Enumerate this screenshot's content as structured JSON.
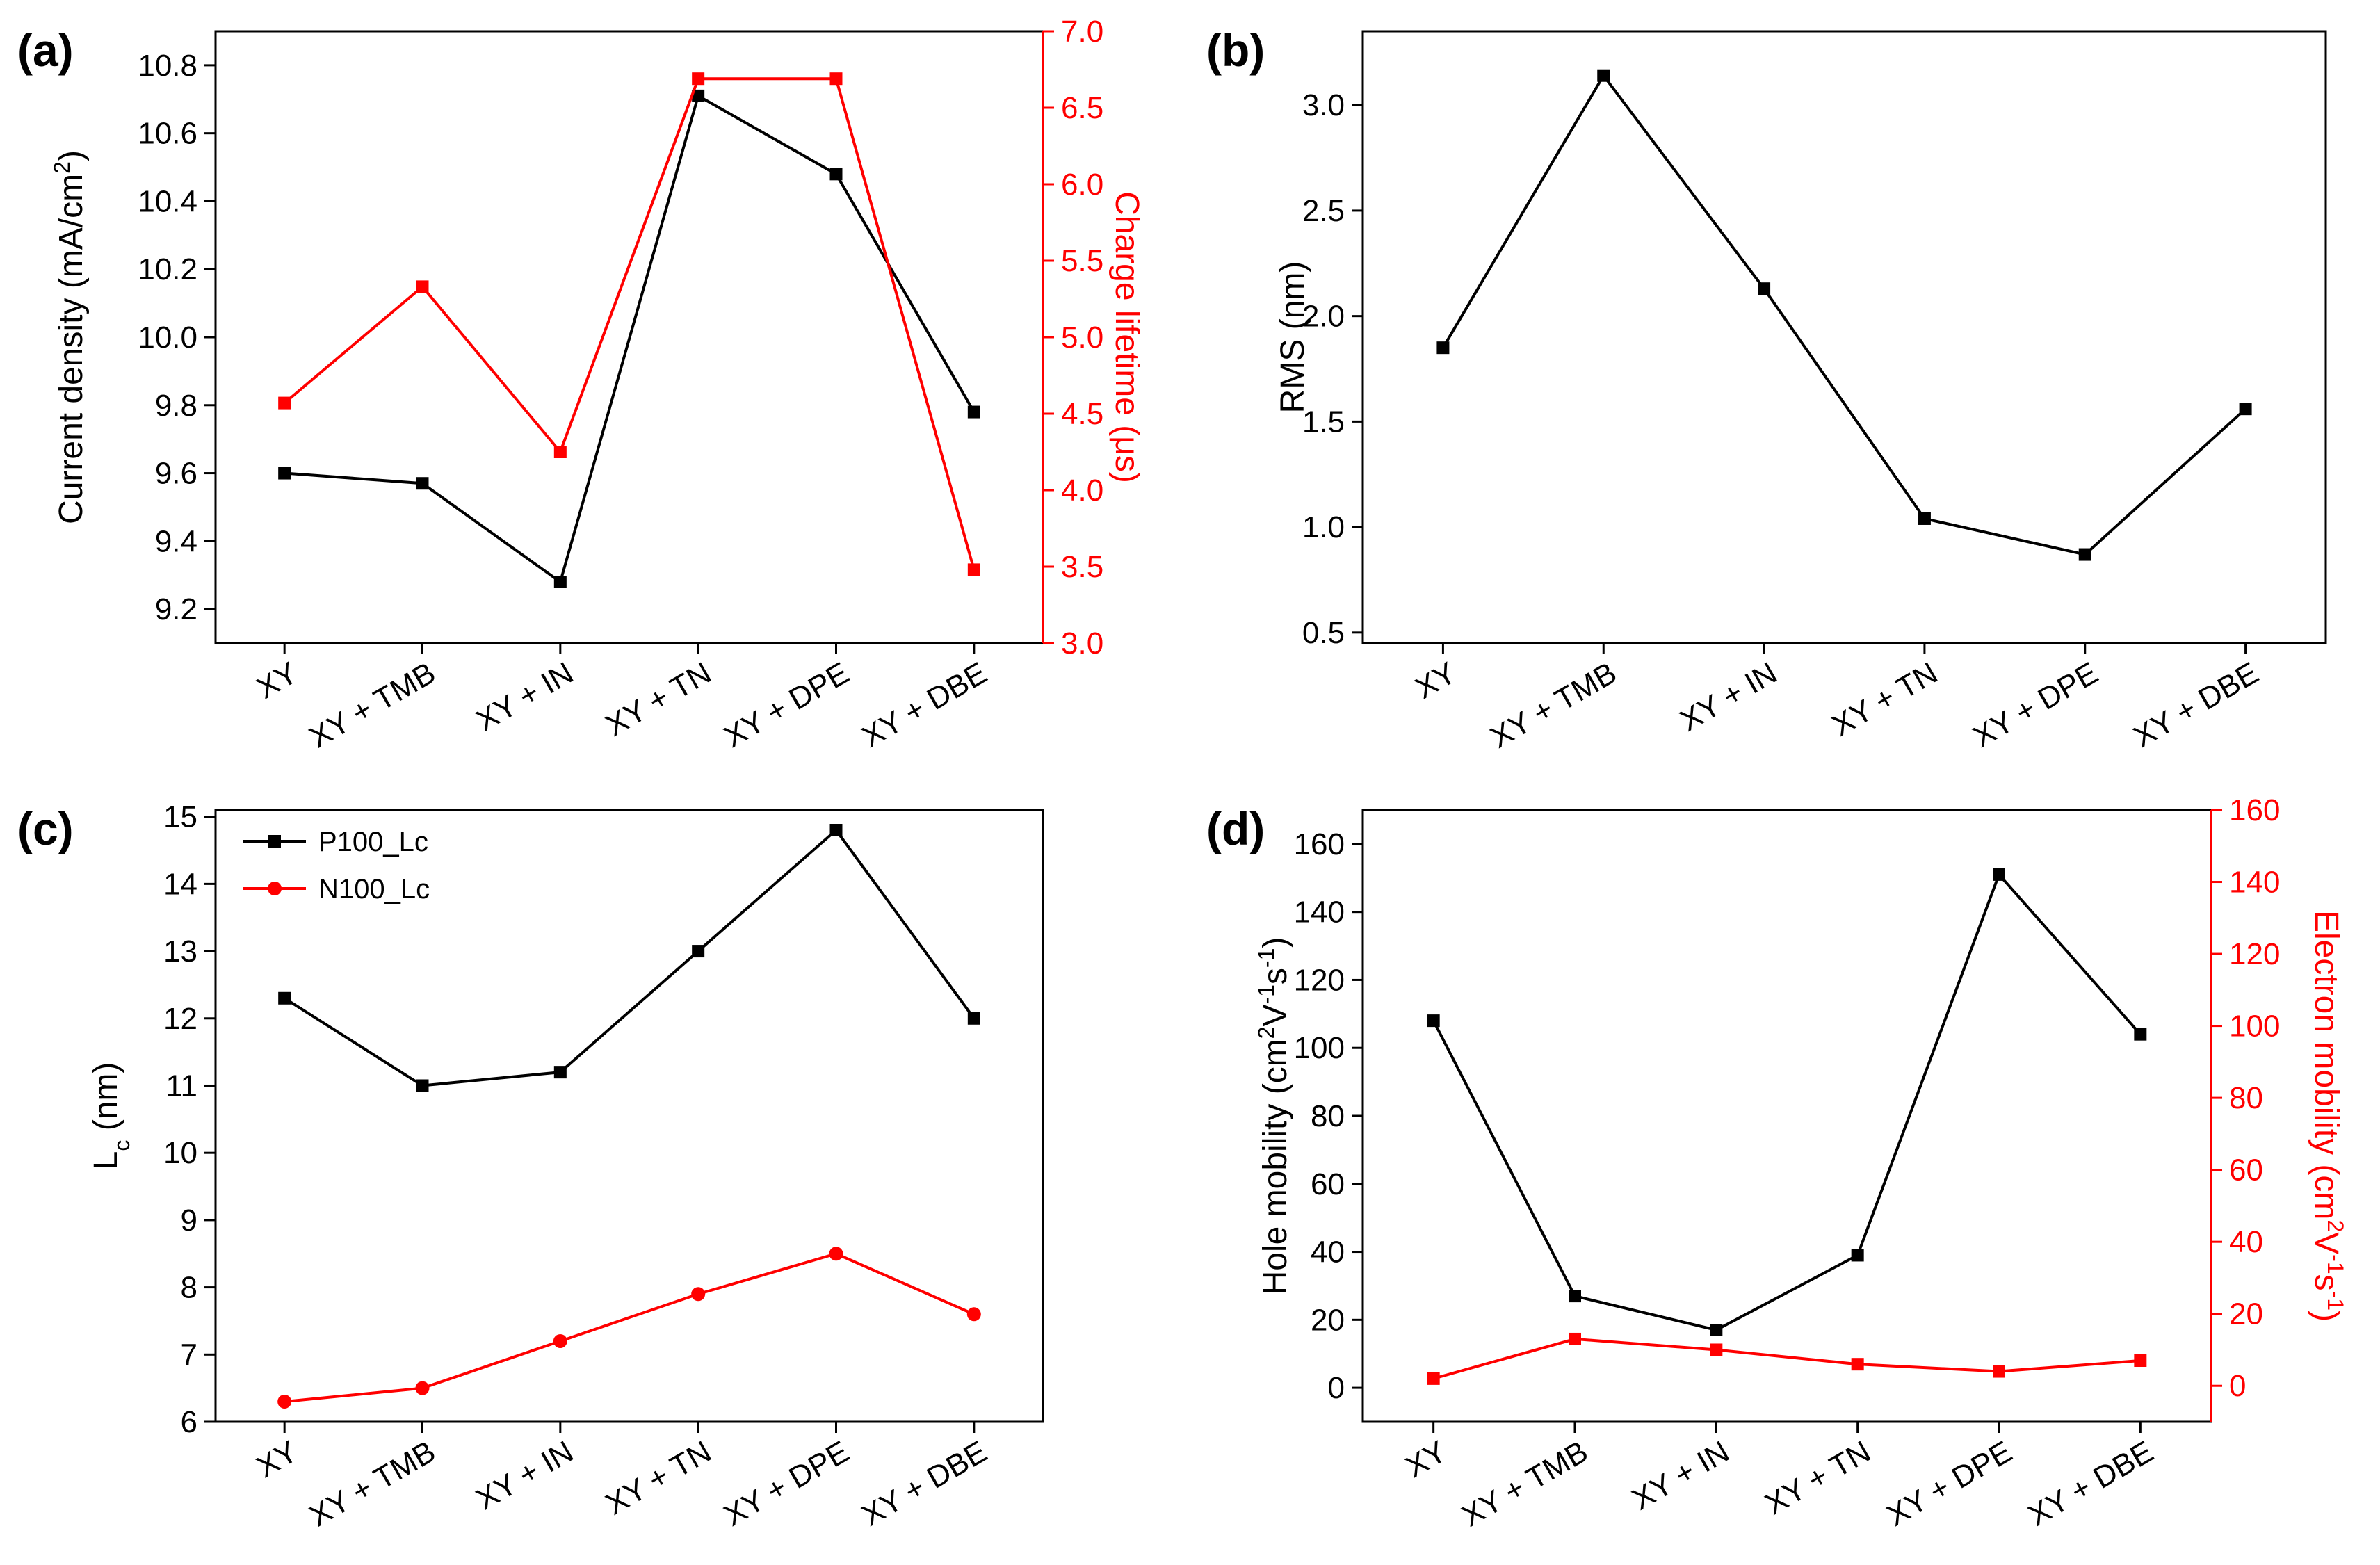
{
  "categories": [
    "XY",
    "XY + TMB",
    "XY + IN",
    "XY + TN",
    "XY + DPE",
    "XY + DBE"
  ],
  "colors": {
    "black": "#000000",
    "red": "#ff0000"
  },
  "chart_data": [
    {
      "panel": "(a)",
      "type": "line",
      "categories": [
        "XY",
        "XY + TMB",
        "XY + IN",
        "XY + TN",
        "XY + DPE",
        "XY + DBE"
      ],
      "left_axis": {
        "label_pre": "Current density (mA/cm",
        "label_sup": "2",
        "label_post": ")",
        "ylim": [
          9.1,
          10.9
        ],
        "ticks": [
          9.2,
          9.4,
          9.6,
          9.8,
          10.0,
          10.2,
          10.4,
          10.6,
          10.8
        ],
        "tick_labels": [
          "9.2",
          "9.4",
          "9.6",
          "9.8",
          "10.0",
          "10.2",
          "10.4",
          "10.6",
          "10.8"
        ]
      },
      "right_axis": {
        "label": "Charge lifetime (μs)",
        "ylim": [
          3.0,
          7.0
        ],
        "ticks": [
          3.0,
          3.5,
          4.0,
          4.5,
          5.0,
          5.5,
          6.0,
          6.5,
          7.0
        ],
        "tick_labels": [
          "3.0",
          "3.5",
          "4.0",
          "4.5",
          "5.0",
          "5.5",
          "6.0",
          "6.5",
          "7.0"
        ]
      },
      "series": [
        {
          "name": "Current density",
          "axis": "left",
          "color": "#000000",
          "marker": "square",
          "values": [
            9.6,
            9.57,
            9.28,
            10.71,
            10.48,
            9.78
          ]
        },
        {
          "name": "Charge lifetime",
          "axis": "right",
          "color": "#ff0000",
          "marker": "square",
          "values": [
            4.57,
            5.33,
            4.25,
            6.69,
            6.69,
            3.48
          ]
        }
      ]
    },
    {
      "panel": "(b)",
      "type": "line",
      "categories": [
        "XY",
        "XY + TMB",
        "XY + IN",
        "XY + TN",
        "XY + DPE",
        "XY + DBE"
      ],
      "left_axis": {
        "label": "RMS (nm)",
        "ylim": [
          0.45,
          3.35
        ],
        "ticks": [
          0.5,
          1.0,
          1.5,
          2.0,
          2.5,
          3.0
        ],
        "tick_labels": [
          "0.5",
          "1.0",
          "1.5",
          "2.0",
          "2.5",
          "3.0"
        ]
      },
      "series": [
        {
          "name": "RMS",
          "axis": "left",
          "color": "#000000",
          "marker": "square",
          "values": [
            1.85,
            3.14,
            2.13,
            1.04,
            0.87,
            1.56
          ]
        }
      ]
    },
    {
      "panel": "(c)",
      "type": "line",
      "categories": [
        "XY",
        "XY + TMB",
        "XY + IN",
        "XY + TN",
        "XY + DPE",
        "XY + DBE"
      ],
      "left_axis": {
        "label_main": "L",
        "label_sub": "c",
        "label_post": " (nm)",
        "ylim": [
          6.0,
          15.1
        ],
        "ticks": [
          6,
          7,
          8,
          9,
          10,
          11,
          12,
          13,
          14,
          15
        ],
        "tick_labels": [
          "6",
          "7",
          "8",
          "9",
          "10",
          "11",
          "12",
          "13",
          "14",
          "15"
        ]
      },
      "legend_position": "top-left",
      "series": [
        {
          "name": "P100_Lc",
          "axis": "left",
          "color": "#000000",
          "marker": "square",
          "values": [
            12.3,
            11.0,
            11.2,
            13.0,
            14.8,
            12.0
          ]
        },
        {
          "name": "N100_Lc",
          "axis": "left",
          "color": "#ff0000",
          "marker": "circle",
          "values": [
            6.3,
            6.5,
            7.2,
            7.9,
            8.5,
            7.6
          ]
        }
      ]
    },
    {
      "panel": "(d)",
      "type": "line",
      "categories": [
        "XY",
        "XY + TMB",
        "XY + IN",
        "XY + TN",
        "XY + DPE",
        "XY + DBE"
      ],
      "left_axis": {
        "label_parts": [
          "Hole mobility (cm",
          "2",
          "V",
          "-1",
          "s",
          "-1",
          ")"
        ],
        "ylim": [
          -10,
          170
        ],
        "ticks": [
          0,
          20,
          40,
          60,
          80,
          100,
          120,
          140,
          160
        ],
        "tick_labels": [
          "0",
          "20",
          "40",
          "60",
          "80",
          "100",
          "120",
          "140",
          "160"
        ]
      },
      "right_axis": {
        "label_parts": [
          "Electron mobility (cm",
          "2",
          "V",
          "-1",
          "s",
          "-1",
          ")"
        ],
        "ylim": [
          -10,
          160
        ],
        "ticks": [
          0,
          20,
          40,
          60,
          80,
          100,
          120,
          140,
          160
        ],
        "tick_labels": [
          "0",
          "20",
          "40",
          "60",
          "80",
          "100",
          "120",
          "140",
          "160"
        ]
      },
      "series": [
        {
          "name": "Hole mobility",
          "axis": "left",
          "color": "#000000",
          "marker": "square",
          "values": [
            108,
            27,
            17,
            39,
            151,
            104
          ]
        },
        {
          "name": "Electron mobility",
          "axis": "right",
          "color": "#ff0000",
          "marker": "square",
          "values": [
            2,
            13,
            10,
            6,
            4,
            7
          ]
        }
      ]
    }
  ]
}
